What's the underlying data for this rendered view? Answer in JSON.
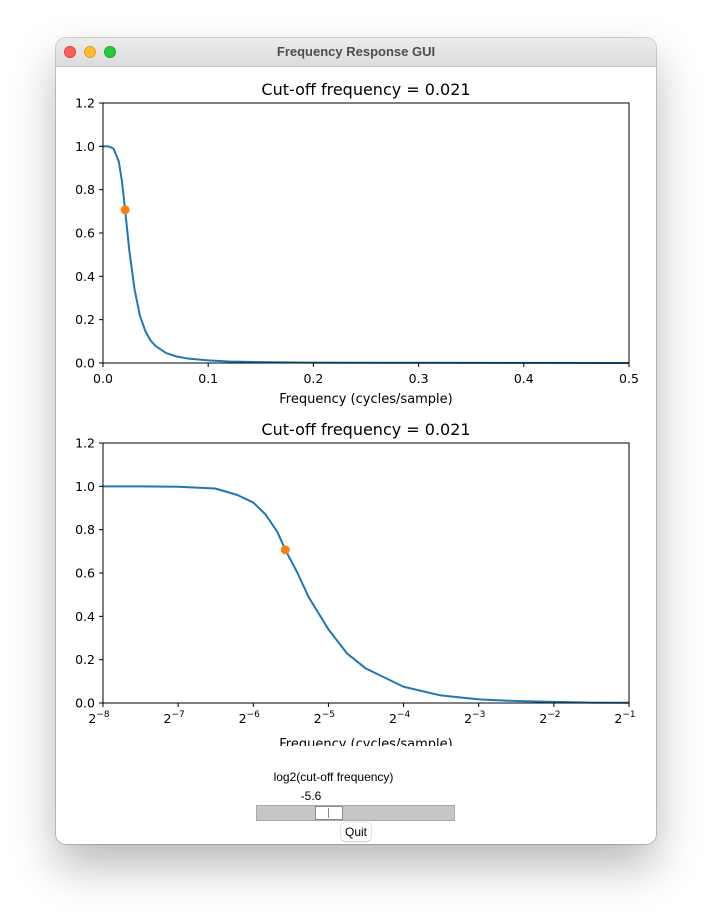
{
  "window": {
    "title": "Frequency Response GUI"
  },
  "controls": {
    "slider_label": "log2(cut-off frequency)",
    "slider_value": "-5.6",
    "slider_min": -8,
    "slider_max": -1,
    "slider_level": -5.6,
    "quit_label": "Quit"
  },
  "colors": {
    "curve": "#1f77b4",
    "marker": "#ff7f0e",
    "slider_trough": "#c6c6c6"
  },
  "chart_data": [
    {
      "type": "line",
      "title": "Cut-off frequency = 0.021",
      "xlabel": "Frequency (cycles/sample)",
      "ylabel": "",
      "xscale": "linear",
      "xlim": [
        0,
        0.5
      ],
      "ylim": [
        0,
        1.2
      ],
      "xticks": [
        0,
        0.1,
        0.2,
        0.3,
        0.4,
        0.5
      ],
      "xtick_labels": [
        "0.0",
        "0.1",
        "0.2",
        "0.3",
        "0.4",
        "0.5"
      ],
      "yticks": [
        0,
        0.2,
        0.4,
        0.6,
        0.8,
        1.0,
        1.2
      ],
      "ytick_labels": [
        "0.0",
        "0.2",
        "0.4",
        "0.6",
        "0.8",
        "1.0",
        "1.2"
      ],
      "grid": false,
      "series": [
        {
          "x": [
            0,
            0.005,
            0.01,
            0.015,
            0.018,
            0.021,
            0.025,
            0.03,
            0.035,
            0.04,
            0.045,
            0.05,
            0.06,
            0.07,
            0.08,
            0.1,
            0.12,
            0.15,
            0.2,
            0.3,
            0.4,
            0.5
          ],
          "y": [
            1.0,
            1.0,
            0.99,
            0.93,
            0.84,
            0.707,
            0.52,
            0.34,
            0.22,
            0.15,
            0.105,
            0.078,
            0.046,
            0.03,
            0.021,
            0.012,
            0.007,
            0.004,
            0.002,
            0.001,
            0.0005,
            0.0003
          ]
        }
      ],
      "marker": {
        "x": 0.021,
        "y": 0.707
      }
    },
    {
      "type": "line",
      "title": "Cut-off frequency = 0.021",
      "xlabel": "Frequency (cycles/sample)",
      "ylabel": "",
      "xscale": "log2",
      "xlim": [
        0.00390625,
        0.5
      ],
      "ylim": [
        0,
        1.2
      ],
      "xticks": [
        0.00390625,
        0.0078125,
        0.015625,
        0.03125,
        0.0625,
        0.125,
        0.25,
        0.5
      ],
      "xtick_exponents": [
        "−8",
        "−7",
        "−6",
        "−5",
        "−4",
        "−3",
        "−2",
        "−1"
      ],
      "xtick_base": "2",
      "yticks": [
        0,
        0.2,
        0.4,
        0.6,
        0.8,
        1.0,
        1.2
      ],
      "ytick_labels": [
        "0.0",
        "0.2",
        "0.4",
        "0.6",
        "0.8",
        "1.0",
        "1.2"
      ],
      "grid": false,
      "series": [
        {
          "x": [
            0.00390625,
            0.0055,
            0.0078125,
            0.011,
            0.0135,
            0.015625,
            0.0175,
            0.0195,
            0.021,
            0.0235,
            0.026,
            0.03125,
            0.037,
            0.044,
            0.0625,
            0.088,
            0.125,
            0.177,
            0.25,
            0.354,
            0.5
          ],
          "y": [
            1.0,
            1.0,
            0.998,
            0.99,
            0.96,
            0.925,
            0.87,
            0.79,
            0.707,
            0.6,
            0.49,
            0.34,
            0.23,
            0.16,
            0.075,
            0.035,
            0.017,
            0.009,
            0.005,
            0.002,
            0.001
          ]
        }
      ],
      "marker": {
        "x": 0.021,
        "y": 0.707
      }
    }
  ]
}
